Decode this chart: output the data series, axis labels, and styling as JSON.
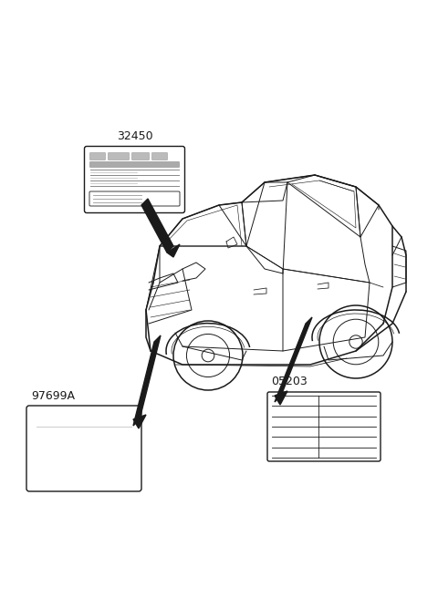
{
  "bg_color": "#ffffff",
  "line_color": "#1a1a1a",
  "label_32450": "32450",
  "label_97699A": "97699A",
  "label_05203": "05203",
  "fig_width": 4.8,
  "fig_height": 6.56,
  "dpi": 100,
  "car_lw": 0.7,
  "car_lw_thick": 1.1,
  "arrow_lw": 3.5
}
